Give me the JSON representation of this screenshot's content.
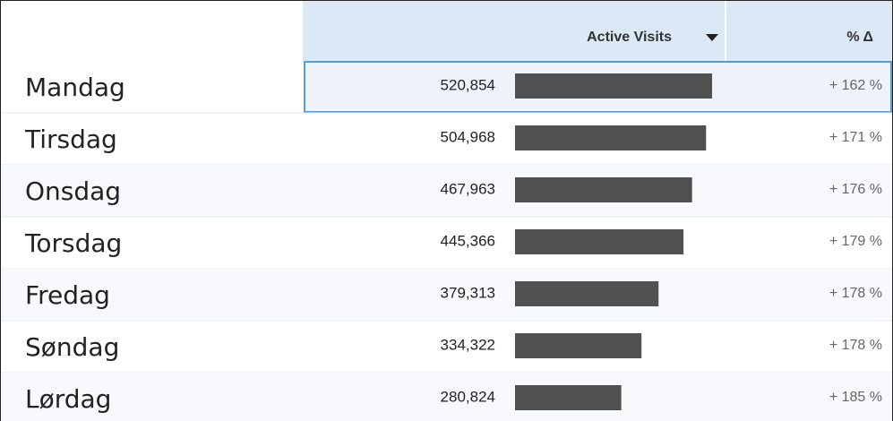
{
  "chart_data": {
    "type": "bar",
    "categories": [
      "Mandag",
      "Tirsdag",
      "Onsdag",
      "Torsdag",
      "Fredag",
      "Søndag",
      "Lørdag"
    ],
    "series": [
      {
        "name": "Active Visits ",
        "color": "#505050",
        "values": [
          520854,
          504968,
          467963,
          445366,
          379313,
          334322,
          280824
        ],
        "value_labels": [
          "520,854",
          "504,968",
          "467,963",
          "445,366",
          "379,313",
          "334,322",
          "280,824"
        ]
      },
      {
        "name": "% Δ",
        "values": [
          162,
          171,
          176,
          179,
          178,
          178,
          185
        ],
        "value_labels": [
          "+ 162 %",
          "+ 171 %",
          "+ 176 %",
          "+ 179 %",
          "+ 178 %",
          "+ 178 %",
          "+ 185 %"
        ]
      }
    ]
  }
}
